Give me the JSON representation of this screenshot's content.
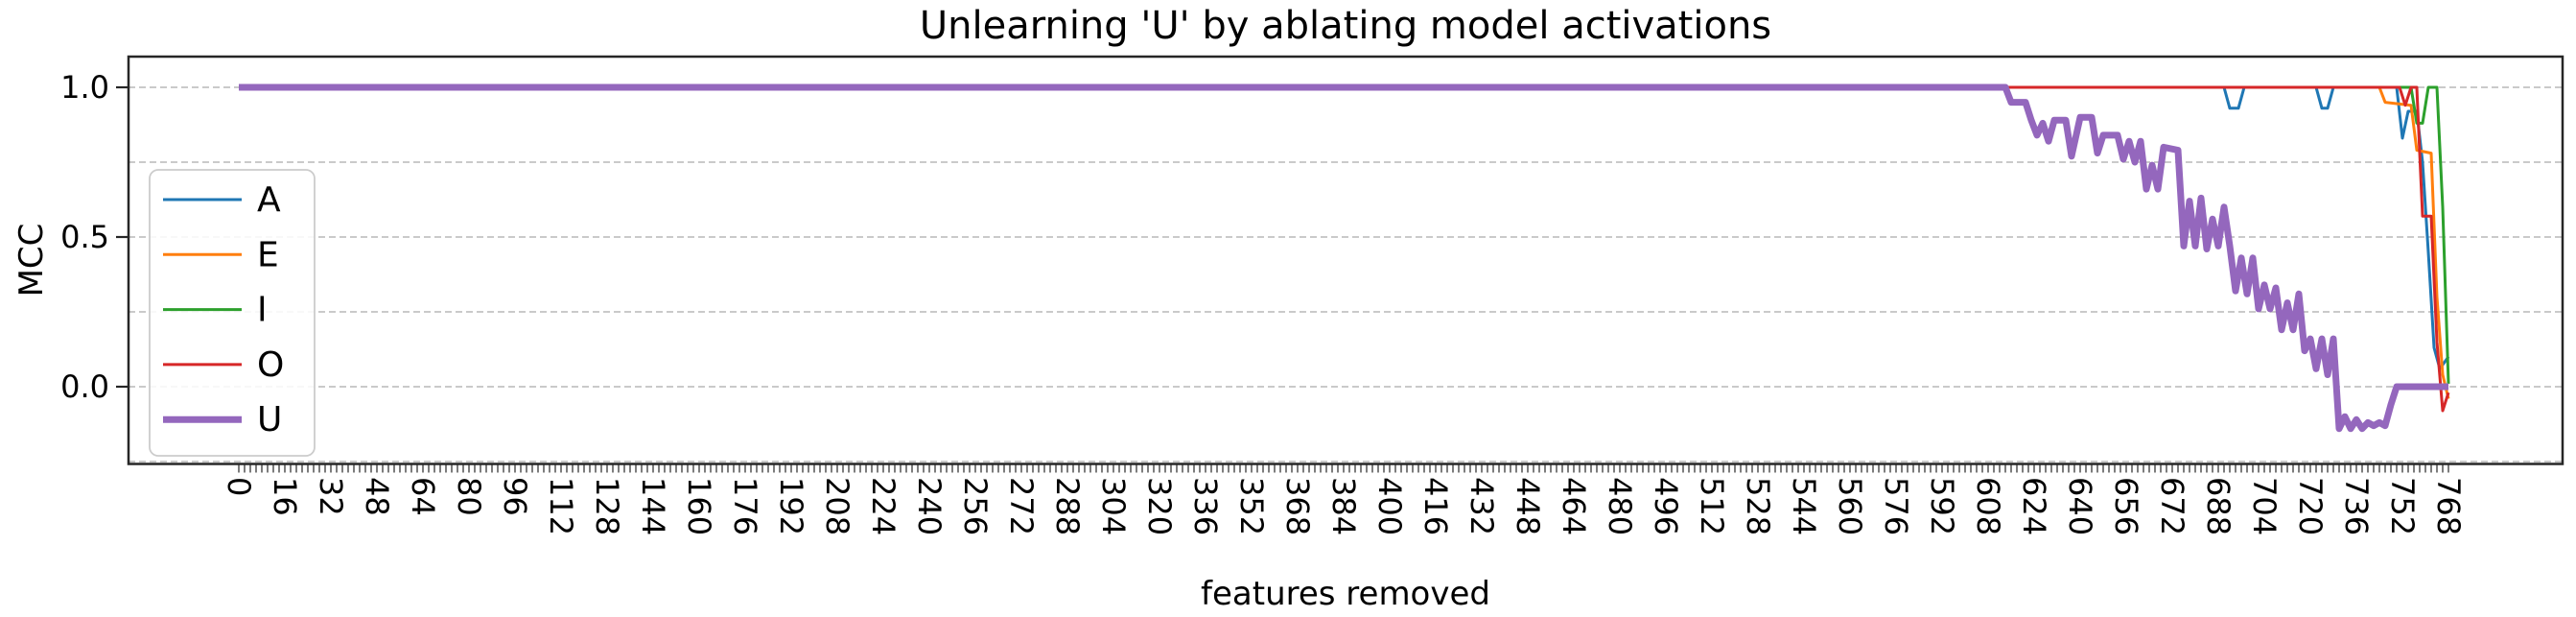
{
  "chart_data": {
    "type": "line",
    "title": "Unlearning 'U' by ablating model activations",
    "xlabel": "features removed",
    "ylabel": "MCC",
    "grid": "horizontal-dashed",
    "grid_color": "#b8b8b8",
    "axis_color": "#262626",
    "legend_position": "upper left",
    "legend_border_color": "#cccccc",
    "xlim": [
      -38.3,
      806.3
    ],
    "ylim": [
      -0.26,
      1.1
    ],
    "x_tick_step_labeled": 16,
    "x_tick_step_minor": 2,
    "x_tick_labels": [
      0,
      16,
      32,
      48,
      64,
      80,
      96,
      112,
      128,
      144,
      160,
      176,
      192,
      208,
      224,
      240,
      256,
      272,
      288,
      304,
      320,
      336,
      352,
      368,
      384,
      400,
      416,
      432,
      448,
      464,
      480,
      496,
      512,
      528,
      544,
      560,
      576,
      592,
      608,
      624,
      640,
      656,
      672,
      688,
      704,
      720,
      736,
      752,
      768
    ],
    "y_tick_labels": [
      "1.0",
      "0.5",
      "0.0"
    ],
    "y_ticks_labeled": [
      1.0,
      0.5,
      0.0
    ],
    "y_gridlines": [
      1.0,
      0.75,
      0.5,
      0.25,
      0.0,
      -0.25
    ],
    "series": [
      {
        "name": "A",
        "color": "#1f77b4",
        "width": 3,
        "points": [
          [
            0,
            1
          ],
          [
            690,
            1
          ],
          [
            692,
            0.93
          ],
          [
            695,
            0.93
          ],
          [
            697,
            1
          ],
          [
            722,
            1
          ],
          [
            724,
            0.93
          ],
          [
            726,
            0.93
          ],
          [
            728,
            1
          ],
          [
            750,
            1
          ],
          [
            752,
            0.83
          ],
          [
            754,
            0.92
          ],
          [
            757,
            0.92
          ],
          [
            759,
            0.75
          ],
          [
            761,
            0.45
          ],
          [
            763,
            0.13
          ],
          [
            765,
            0.06
          ],
          [
            768,
            0.1
          ]
        ]
      },
      {
        "name": "E",
        "color": "#ff7f0e",
        "width": 3,
        "points": [
          [
            0,
            1
          ],
          [
            744,
            1
          ],
          [
            746,
            0.95
          ],
          [
            755,
            0.94
          ],
          [
            757,
            0.79
          ],
          [
            762,
            0.78
          ],
          [
            764,
            0.3
          ],
          [
            766,
            0.04
          ],
          [
            768,
            -0.04
          ]
        ]
      },
      {
        "name": "I",
        "color": "#2ca02c",
        "width": 3,
        "points": [
          [
            0,
            1
          ],
          [
            755,
            1
          ],
          [
            757,
            0.88
          ],
          [
            759,
            0.88
          ],
          [
            761,
            1
          ],
          [
            764,
            1
          ],
          [
            766,
            0.6
          ],
          [
            768,
            0.01
          ]
        ]
      },
      {
        "name": "O",
        "color": "#d62728",
        "width": 3,
        "points": [
          [
            0,
            1
          ],
          [
            751,
            1
          ],
          [
            753,
            0.94
          ],
          [
            755,
            1
          ],
          [
            757,
            1
          ],
          [
            758,
            0.78
          ],
          [
            759,
            0.57
          ],
          [
            762,
            0.57
          ],
          [
            764,
            0.15
          ],
          [
            766,
            -0.08
          ],
          [
            768,
            -0.02
          ]
        ]
      },
      {
        "name": "U",
        "color": "#9467bd",
        "width": 7,
        "points": [
          [
            0,
            1
          ],
          [
            614,
            1
          ],
          [
            616,
            0.95
          ],
          [
            621,
            0.95
          ],
          [
            623,
            0.89
          ],
          [
            625,
            0.84
          ],
          [
            627,
            0.88
          ],
          [
            629,
            0.82
          ],
          [
            631,
            0.89
          ],
          [
            635,
            0.89
          ],
          [
            637,
            0.77
          ],
          [
            640,
            0.9
          ],
          [
            644,
            0.9
          ],
          [
            646,
            0.78
          ],
          [
            648,
            0.84
          ],
          [
            653,
            0.84
          ],
          [
            655,
            0.76
          ],
          [
            657,
            0.82
          ],
          [
            659,
            0.75
          ],
          [
            661,
            0.82
          ],
          [
            663,
            0.66
          ],
          [
            665,
            0.74
          ],
          [
            667,
            0.66
          ],
          [
            669,
            0.8
          ],
          [
            674,
            0.79
          ],
          [
            676,
            0.47
          ],
          [
            678,
            0.62
          ],
          [
            680,
            0.47
          ],
          [
            682,
            0.63
          ],
          [
            684,
            0.46
          ],
          [
            686,
            0.56
          ],
          [
            688,
            0.47
          ],
          [
            690,
            0.6
          ],
          [
            692,
            0.47
          ],
          [
            694,
            0.32
          ],
          [
            696,
            0.43
          ],
          [
            698,
            0.31
          ],
          [
            700,
            0.43
          ],
          [
            702,
            0.26
          ],
          [
            704,
            0.34
          ],
          [
            706,
            0.26
          ],
          [
            708,
            0.33
          ],
          [
            710,
            0.19
          ],
          [
            712,
            0.28
          ],
          [
            714,
            0.19
          ],
          [
            716,
            0.31
          ],
          [
            718,
            0.12
          ],
          [
            720,
            0.16
          ],
          [
            722,
            0.06
          ],
          [
            724,
            0.16
          ],
          [
            726,
            0.04
          ],
          [
            728,
            0.16
          ],
          [
            730,
            -0.14
          ],
          [
            732,
            -0.1
          ],
          [
            734,
            -0.14
          ],
          [
            736,
            -0.11
          ],
          [
            738,
            -0.14
          ],
          [
            740,
            -0.12
          ],
          [
            742,
            -0.13
          ],
          [
            744,
            -0.12
          ],
          [
            746,
            -0.13
          ],
          [
            748,
            -0.06
          ],
          [
            750,
            0.0
          ],
          [
            768,
            0.0
          ]
        ]
      }
    ]
  }
}
